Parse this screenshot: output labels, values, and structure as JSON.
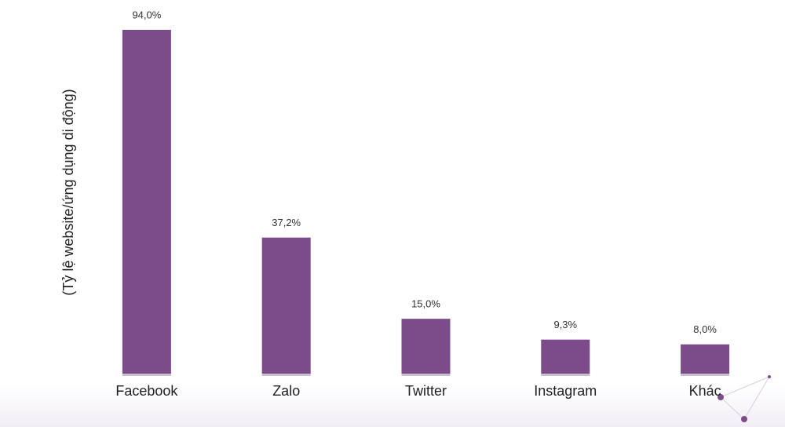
{
  "chart_data": {
    "type": "bar",
    "y_label": "(Tỷ lệ website/ứng dụng di động)",
    "categories": [
      "Facebook",
      "Zalo",
      "Twitter",
      "Instagram",
      "Khác"
    ],
    "values": [
      94.0,
      37.2,
      15.0,
      9.3,
      8.0
    ],
    "value_labels": [
      "94,0%",
      "37,2%",
      "15,0%",
      "9,3%",
      "8,0%"
    ],
    "color": "#7b4b8a"
  }
}
